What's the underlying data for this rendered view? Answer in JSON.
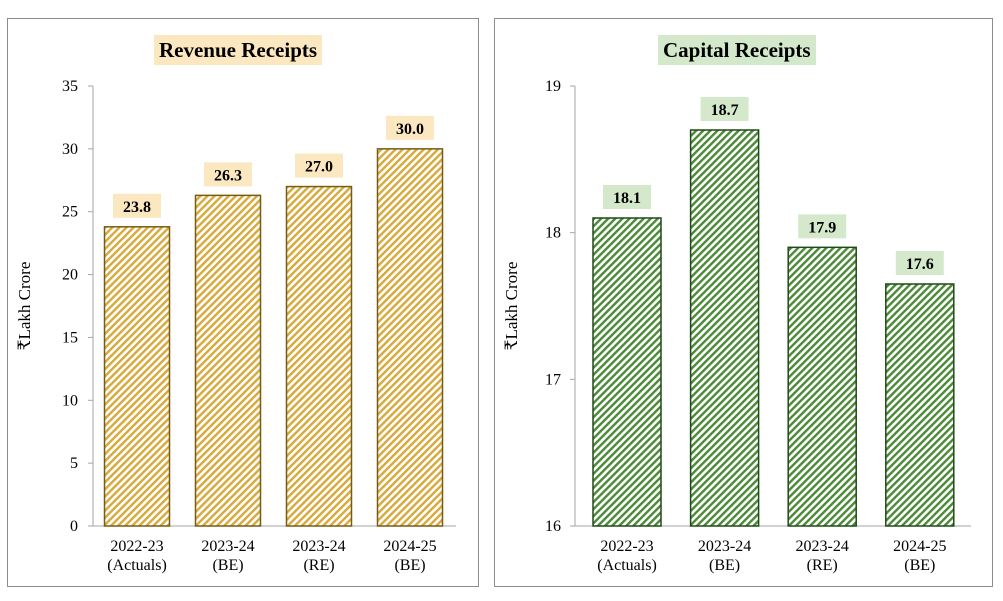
{
  "chart_data": [
    {
      "type": "bar",
      "title": "Revenue Receipts",
      "ylabel": "₹Lakh Crore",
      "xlabel": "",
      "categories": [
        [
          "2022-23",
          "(Actuals)"
        ],
        [
          "2023-24",
          "(BE)"
        ],
        [
          "2023-24",
          "(RE)"
        ],
        [
          "2024-25",
          "(BE)"
        ]
      ],
      "values": [
        23.8,
        26.3,
        27.0,
        30.0
      ],
      "value_labels": [
        "23.8",
        "26.3",
        "27.0",
        "30.0"
      ],
      "ylim": [
        0,
        35
      ],
      "yticks": [
        "0",
        "5",
        "10",
        "15",
        "20",
        "25",
        "30",
        "35"
      ],
      "grid": false,
      "colors": {
        "bar_stroke": "#7a5a10",
        "bar_hatch": "#d8a93a",
        "label_bg": "#fbe8c0",
        "title_bg": "#fbe8c0"
      }
    },
    {
      "type": "bar",
      "title": "Capital Receipts",
      "ylabel": "₹Lakh Crore",
      "xlabel": "",
      "categories": [
        [
          "2022-23",
          "(Actuals)"
        ],
        [
          "2023-24",
          "(BE)"
        ],
        [
          "2023-24",
          "(RE)"
        ],
        [
          "2024-25",
          "(BE)"
        ]
      ],
      "values": [
        18.1,
        18.7,
        17.9,
        17.65
      ],
      "value_labels": [
        "18.1",
        "18.7",
        "17.9",
        "17.6"
      ],
      "ylim": [
        16,
        19
      ],
      "yticks": [
        "16",
        "17",
        "18",
        "19"
      ],
      "grid": false,
      "colors": {
        "bar_stroke": "#1f4a17",
        "bar_hatch": "#4a8a36",
        "label_bg": "#d4e9cc",
        "title_bg": "#d4e9cc"
      }
    }
  ]
}
